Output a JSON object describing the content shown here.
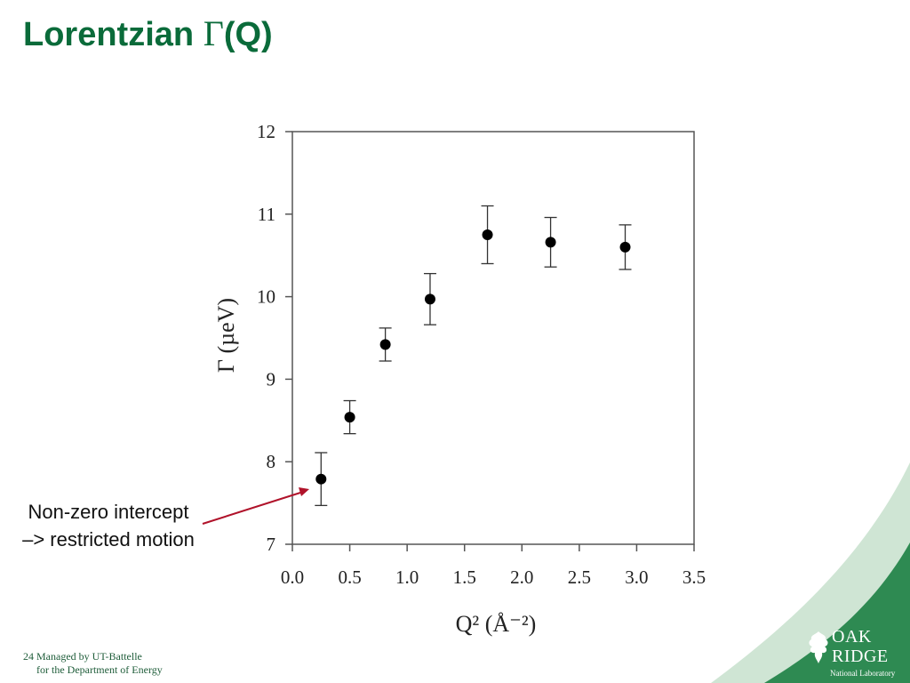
{
  "slide": {
    "title_text": "Lorentzian ",
    "title_gamma": "Γ",
    "title_suffix": "(Q)",
    "page_number": "24",
    "footer_line1": "Managed by UT-Battelle",
    "footer_line2": "for the Department of Energy",
    "logo_word1": "OAK",
    "logo_word2": "RIDGE",
    "logo_sub": "National Laboratory"
  },
  "annotation": {
    "line1": "Non-zero intercept",
    "line2": "–> restricted motion",
    "color": "#b0122a"
  },
  "colors": {
    "title": "#0a6b3a",
    "corner_swoosh": "#2e8a52"
  },
  "chart_data": {
    "type": "scatter",
    "title": "",
    "xlabel": "Q² (Å⁻²)",
    "ylabel": "Γ (µeV)",
    "xlim": [
      0.0,
      3.5
    ],
    "ylim": [
      7,
      12
    ],
    "xticks": [
      "0.0",
      "0.5",
      "1.0",
      "1.5",
      "2.0",
      "2.5",
      "3.0",
      "3.5"
    ],
    "yticks": [
      "7",
      "8",
      "9",
      "10",
      "11",
      "12"
    ],
    "grid": false,
    "series": [
      {
        "x": [
          0.25,
          0.5,
          0.81,
          1.2,
          1.7,
          2.25,
          2.9
        ],
        "y": [
          7.79,
          8.54,
          9.42,
          9.97,
          10.75,
          10.66,
          10.6
        ],
        "err_low": [
          0.32,
          0.2,
          0.2,
          0.31,
          0.35,
          0.3,
          0.27
        ],
        "err_high": [
          0.32,
          0.2,
          0.2,
          0.31,
          0.35,
          0.3,
          0.27
        ]
      }
    ]
  }
}
